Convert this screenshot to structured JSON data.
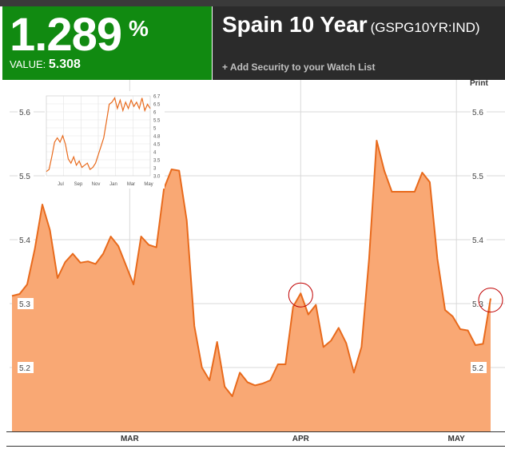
{
  "header": {
    "big_value": "1.289",
    "percent_sign": "%",
    "value_label": "VALUE:",
    "value": "5.308",
    "title": "Spain 10 Year",
    "ticker": "(GSPG10YR:IND)",
    "watch_link": "+ Add Security to your Watch List",
    "print_label": "Print"
  },
  "colors": {
    "accent_green": "#118a11",
    "header_dark": "#2b2b2b",
    "series_line": "#e86a1c",
    "series_fill": "#f9a874",
    "marker": "#c00000"
  },
  "chart_data": [
    {
      "type": "area",
      "ylim": [
        5.1,
        5.65
      ],
      "yticks": [
        5.2,
        5.3,
        5.4,
        5.5,
        5.6
      ],
      "ytick_labels": [
        "5.2",
        "5.3",
        "5.4",
        "5.5",
        "5.6"
      ],
      "xticks": [
        {
          "label": "MAR",
          "at": 31
        },
        {
          "label": "APR",
          "at": 76
        },
        {
          "label": "MAY",
          "at": 117
        }
      ],
      "x_range": [
        0,
        126
      ],
      "grid": true,
      "highlighted_points": [
        {
          "x": 76,
          "y": 5.316
        },
        {
          "x": 126,
          "y": 5.308
        }
      ],
      "values": [
        5.312,
        5.315,
        5.33,
        5.385,
        5.455,
        5.415,
        5.34,
        5.365,
        5.378,
        5.364,
        5.366,
        5.362,
        5.378,
        5.405,
        5.39,
        5.36,
        5.33,
        5.405,
        5.392,
        5.388,
        5.48,
        5.51,
        5.508,
        5.43,
        5.265,
        5.2,
        5.18,
        5.24,
        5.17,
        5.155,
        5.192,
        5.177,
        5.172,
        5.175,
        5.18,
        5.205,
        5.205,
        5.295,
        5.316,
        5.283,
        5.298,
        5.232,
        5.242,
        5.262,
        5.238,
        5.192,
        5.232,
        5.37,
        5.555,
        5.508,
        5.475,
        5.475,
        5.475,
        5.475,
        5.505,
        5.49,
        5.37,
        5.29,
        5.28,
        5.26,
        5.258,
        5.235,
        5.237,
        5.308
      ],
      "x": [
        0,
        2,
        4,
        6,
        8,
        10,
        12,
        14,
        16,
        18,
        20,
        22,
        24,
        26,
        28,
        30,
        32,
        34,
        36,
        38,
        40,
        42,
        44,
        46,
        48,
        50,
        52,
        54,
        56,
        58,
        60,
        62,
        64,
        66,
        68,
        70,
        72,
        74,
        76,
        78,
        80,
        82,
        84,
        86,
        88,
        90,
        92,
        94,
        96,
        98,
        100,
        102,
        104,
        106,
        108,
        110,
        112,
        114,
        116,
        118,
        120,
        122,
        124,
        126
      ]
    },
    {
      "type": "line",
      "ylim": [
        3.0,
        6.8
      ],
      "ytick_labels": [
        "6.7",
        "6.5",
        "6",
        "5.5",
        "5",
        "4.8",
        "4.5",
        "4",
        "3.5",
        "3",
        "3.0"
      ],
      "xtick_labels": [
        "Jul",
        "Sep",
        "Nov",
        "Jan",
        "Mar",
        "May"
      ],
      "values": [
        3.2,
        3.3,
        3.9,
        4.6,
        4.8,
        4.6,
        4.9,
        4.5,
        3.8,
        3.6,
        3.9,
        3.5,
        3.7,
        3.4,
        3.5,
        3.6,
        3.3,
        3.4,
        3.6,
        4.0,
        4.4,
        4.8,
        5.6,
        6.4,
        6.5,
        6.7,
        6.2,
        6.6,
        6.1,
        6.5,
        6.2,
        6.6,
        6.3,
        6.5,
        6.2,
        6.7,
        6.1,
        6.4,
        6.2
      ]
    }
  ]
}
